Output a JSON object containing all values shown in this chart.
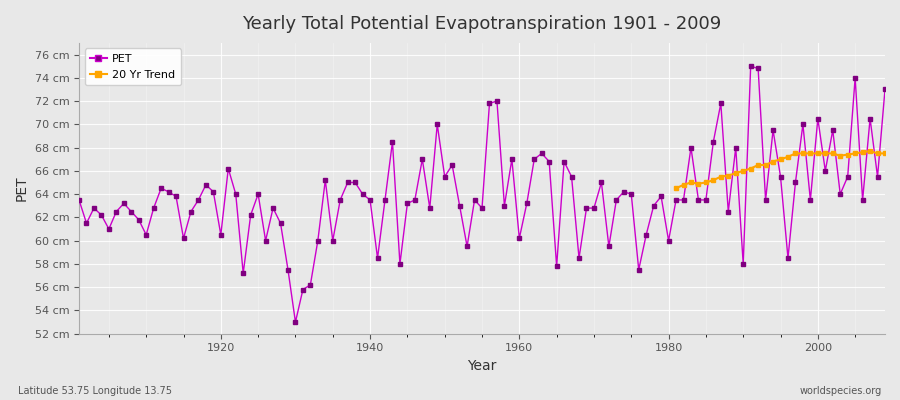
{
  "title": "Yearly Total Potential Evapotranspiration 1901 - 2009",
  "xlabel": "Year",
  "ylabel": "PET",
  "subtitle_left": "Latitude 53.75 Longitude 13.75",
  "subtitle_right": "worldspecies.org",
  "background_color": "#e8e8e8",
  "plot_bg_color": "#e8e8e8",
  "pet_color": "#cc00cc",
  "trend_color": "#ffa500",
  "ylim": [
    52,
    77
  ],
  "yticks": [
    52,
    54,
    56,
    58,
    60,
    62,
    64,
    66,
    68,
    70,
    72,
    74,
    76
  ],
  "ytick_labels": [
    "52 cm",
    "54 cm",
    "56 cm",
    "58 cm",
    "60 cm",
    "62 cm",
    "64 cm",
    "66 cm",
    "68 cm",
    "70 cm",
    "72 cm",
    "74 cm",
    "76 cm"
  ],
  "years": [
    1901,
    1902,
    1903,
    1904,
    1905,
    1906,
    1907,
    1908,
    1909,
    1910,
    1911,
    1912,
    1913,
    1914,
    1915,
    1916,
    1917,
    1918,
    1919,
    1920,
    1921,
    1922,
    1923,
    1924,
    1925,
    1926,
    1927,
    1928,
    1929,
    1930,
    1931,
    1932,
    1933,
    1934,
    1935,
    1936,
    1937,
    1938,
    1939,
    1940,
    1941,
    1942,
    1943,
    1944,
    1945,
    1946,
    1947,
    1948,
    1949,
    1950,
    1951,
    1952,
    1953,
    1954,
    1955,
    1956,
    1957,
    1958,
    1959,
    1960,
    1961,
    1962,
    1963,
    1964,
    1965,
    1966,
    1967,
    1968,
    1969,
    1970,
    1971,
    1972,
    1973,
    1974,
    1975,
    1976,
    1977,
    1978,
    1979,
    1980,
    1981,
    1982,
    1983,
    1984,
    1985,
    1986,
    1987,
    1988,
    1989,
    1990,
    1991,
    1992,
    1993,
    1994,
    1995,
    1996,
    1997,
    1998,
    1999,
    2000,
    2001,
    2002,
    2003,
    2004,
    2005,
    2006,
    2007,
    2008,
    2009
  ],
  "pet_values": [
    63.5,
    61.5,
    62.8,
    62.2,
    61.0,
    62.5,
    63.2,
    62.5,
    61.8,
    60.5,
    62.8,
    64.5,
    64.2,
    63.8,
    60.2,
    62.5,
    63.5,
    64.8,
    64.2,
    60.5,
    66.2,
    64.0,
    57.2,
    62.2,
    64.0,
    60.0,
    62.8,
    61.5,
    57.5,
    53.0,
    55.8,
    56.2,
    60.0,
    65.2,
    60.0,
    63.5,
    65.0,
    65.0,
    64.0,
    63.5,
    58.5,
    63.5,
    68.5,
    58.0,
    63.2,
    63.5,
    67.0,
    62.8,
    70.0,
    65.5,
    66.5,
    63.0,
    59.5,
    63.5,
    62.8,
    71.8,
    72.0,
    63.0,
    67.0,
    60.2,
    63.2,
    67.0,
    67.5,
    66.8,
    57.8,
    66.8,
    65.5,
    58.5,
    62.8,
    62.8,
    65.0,
    59.5,
    63.5,
    64.2,
    64.0,
    57.5,
    60.5,
    63.0,
    63.8,
    60.0,
    63.5,
    63.5,
    68.0,
    63.5,
    63.5,
    68.5,
    71.8,
    62.5,
    68.0,
    58.0,
    75.0,
    74.8,
    63.5,
    69.5,
    65.5,
    58.5,
    65.0,
    70.0,
    63.5,
    70.5,
    66.0,
    69.5,
    64.0,
    65.5,
    74.0,
    63.5,
    70.5,
    65.5,
    73.0
  ],
  "trend_years": [
    1981,
    1982,
    1983,
    1984,
    1985,
    1986,
    1987,
    1988,
    1989,
    1990,
    1991,
    1992,
    1993,
    1994,
    1995,
    1996,
    1997,
    1998,
    1999,
    2000,
    2001,
    2002,
    2003,
    2004,
    2005,
    2006,
    2007,
    2008,
    2009
  ],
  "trend_values": [
    64.5,
    64.8,
    65.0,
    64.9,
    65.0,
    65.2,
    65.5,
    65.6,
    65.8,
    66.0,
    66.2,
    66.5,
    66.5,
    66.8,
    67.0,
    67.2,
    67.5,
    67.5,
    67.5,
    67.5,
    67.5,
    67.5,
    67.3,
    67.4,
    67.5,
    67.6,
    67.7,
    67.5,
    67.5
  ]
}
